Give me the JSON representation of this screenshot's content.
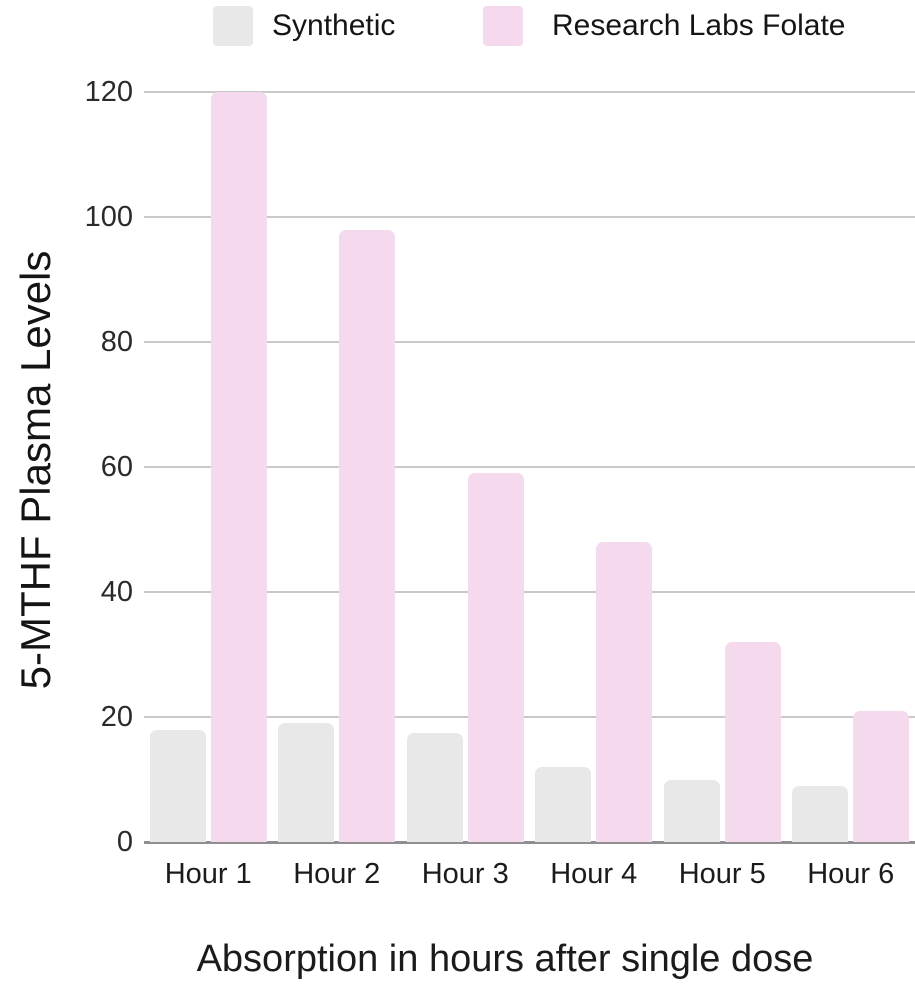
{
  "legend": {
    "items": [
      {
        "label": "Synthetic",
        "color": "#e8e8e8",
        "icon": "swatch-square"
      },
      {
        "label": "Research Labs Folate",
        "color": "#f5d9ed",
        "icon": "swatch-square"
      }
    ]
  },
  "chart_data": {
    "type": "bar",
    "title": "",
    "xlabel": "Absorption in hours after single dose",
    "ylabel": "5-MTHF Plasma Levels",
    "categories": [
      "Hour 1",
      "Hour 2",
      "Hour 3",
      "Hour 4",
      "Hour 5",
      "Hour 6"
    ],
    "series": [
      {
        "name": "Synthetic",
        "color": "#e8e8e8",
        "values": [
          18,
          19,
          17.5,
          12,
          10,
          9
        ]
      },
      {
        "name": "Research Labs Folate",
        "color": "#f5d9ed",
        "values": [
          120,
          98,
          59,
          48,
          32,
          21
        ]
      }
    ],
    "ylim": [
      0,
      120
    ],
    "yticks": [
      0,
      20,
      40,
      60,
      80,
      100,
      120
    ],
    "grid": true,
    "legend_position": "top",
    "colors": {
      "gridline": "#c9c9c9",
      "axis_line": "#8f8f8f",
      "tick_text": "#2a2a2a",
      "label_text": "#1b1b1b",
      "background": "#ffffff"
    }
  }
}
